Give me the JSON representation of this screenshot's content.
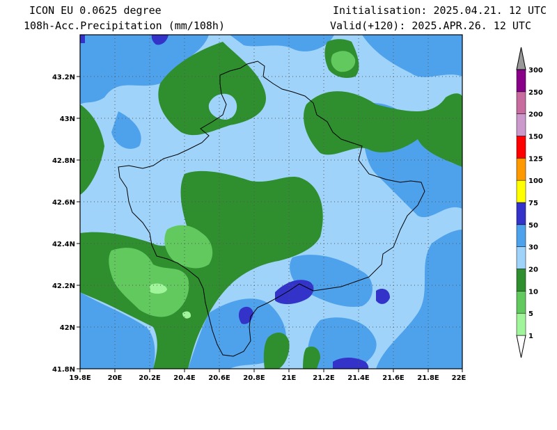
{
  "header": {
    "model": "ICON EU 0.0625 degree",
    "variable": "108h-Acc.Precipitation (mm/108h)",
    "init": "Initialisation: 2025.04.21. 12 UTC",
    "valid": "Valid(+120): 2025.APR.26. 12 UTC"
  },
  "axes": {
    "lat_labels": [
      "43.2N",
      "43N",
      "42.8N",
      "42.6N",
      "42.4N",
      "42.2N",
      "42N",
      "41.8N"
    ],
    "lon_labels": [
      "19.8E",
      "20E",
      "20.2E",
      "20.4E",
      "20.6E",
      "20.8E",
      "21E",
      "21.2E",
      "21.4E",
      "21.6E",
      "21.8E",
      "22E"
    ]
  },
  "legend": {
    "levels": [
      "1",
      "5",
      "10",
      "20",
      "30",
      "50",
      "75",
      "100",
      "125",
      "150",
      "200",
      "250",
      "300"
    ],
    "colors": [
      "#a0f59b",
      "#61c95e",
      "#2f8f2f",
      "#9fd3fa",
      "#4ea2ec",
      "#3333c9",
      "#ffff00",
      "#ff9900",
      "#ff0000",
      "#cc99cc",
      "#c86b9e",
      "#880088",
      "#999999"
    ]
  },
  "colors": {
    "background_field": "#9fd3fa",
    "border": "#000000"
  }
}
